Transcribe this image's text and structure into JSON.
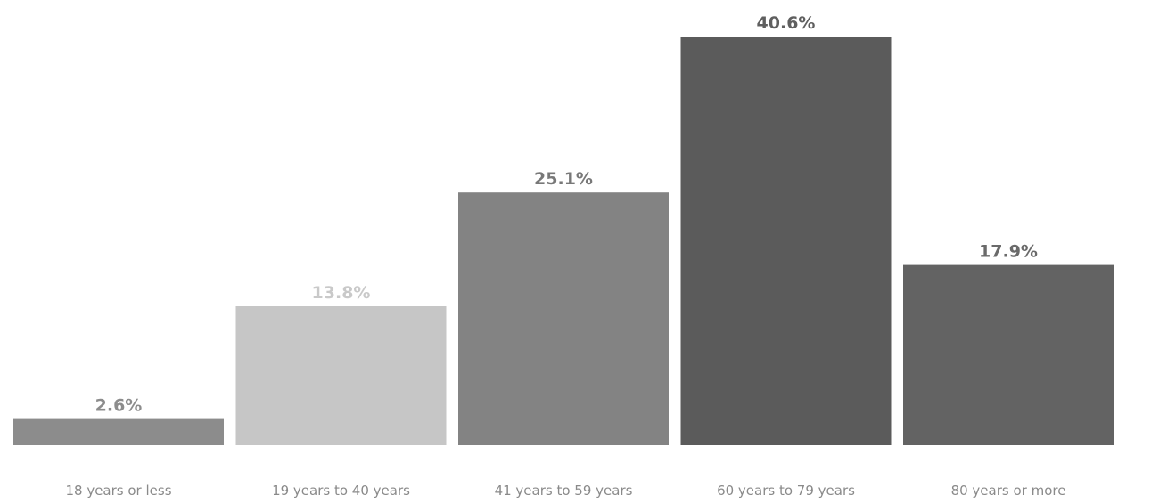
{
  "chart_data": {
    "type": "bar",
    "title": "",
    "xlabel": "",
    "ylabel": "",
    "categories": [
      "18 years or less",
      "19 years to 40 years",
      "41 years to 59 years",
      "60 years to 79 years",
      "80 years or more"
    ],
    "values": [
      2.6,
      13.8,
      25.1,
      40.6,
      17.9
    ],
    "data_labels": [
      "2.6%",
      "13.8%",
      "25.1%",
      "40.6%",
      "17.9%"
    ],
    "ylim": [
      0,
      40.6
    ],
    "grid": false,
    "legend": "none",
    "colors": [
      "#8c8c8c",
      "#c6c6c6",
      "#838383",
      "#5b5b5b",
      "#636363"
    ],
    "label_colors": [
      "#8c8c8c",
      "#c9c9c9",
      "#787878",
      "#5f5f5f",
      "#6a6a6a"
    ]
  }
}
